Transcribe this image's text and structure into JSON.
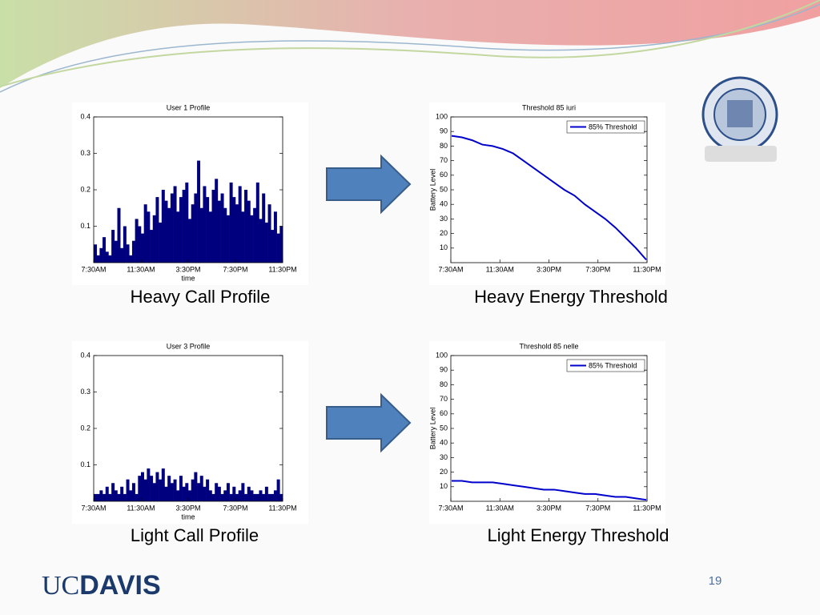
{
  "chart_data": [
    {
      "type": "bar",
      "title": "User 1 Profile",
      "xlabel": "time",
      "color": "#00007f",
      "xticklabels": [
        "7:30AM",
        "11:30AM",
        "3:30PM",
        "7:30PM",
        "11:30PM"
      ],
      "ylim": [
        0,
        0.4
      ],
      "yticks": [
        0.1,
        0.2,
        0.3,
        0.4
      ],
      "values": [
        0.05,
        0.02,
        0.04,
        0.07,
        0.03,
        0.02,
        0.09,
        0.06,
        0.15,
        0.04,
        0.1,
        0.05,
        0.02,
        0.06,
        0.12,
        0.1,
        0.08,
        0.16,
        0.14,
        0.09,
        0.13,
        0.18,
        0.11,
        0.2,
        0.17,
        0.15,
        0.19,
        0.21,
        0.14,
        0.18,
        0.2,
        0.22,
        0.12,
        0.16,
        0.19,
        0.28,
        0.15,
        0.21,
        0.18,
        0.14,
        0.2,
        0.23,
        0.17,
        0.19,
        0.15,
        0.13,
        0.22,
        0.18,
        0.16,
        0.21,
        0.14,
        0.2,
        0.17,
        0.13,
        0.15,
        0.22,
        0.12,
        0.19,
        0.11,
        0.16,
        0.09,
        0.14,
        0.08,
        0.1
      ]
    },
    {
      "type": "line",
      "title": "Threshold 85 iuri",
      "ylabel": "Battery Level",
      "color": "#0000cc",
      "xticklabels": [
        "7:30AM",
        "11:30AM",
        "3:30PM",
        "7:30PM",
        "11:30PM"
      ],
      "ylim": [
        0,
        100
      ],
      "yticks": [
        10,
        20,
        30,
        40,
        50,
        60,
        70,
        80,
        90,
        100
      ],
      "legend": "upper right",
      "series_name": "85% Threshold",
      "values": [
        87,
        86,
        84,
        81,
        80,
        78,
        75,
        70,
        65,
        60,
        55,
        50,
        46,
        40,
        35,
        30,
        24,
        17,
        10,
        2
      ]
    },
    {
      "type": "bar",
      "title": "User 3 Profile",
      "xlabel": "time",
      "color": "#00007f",
      "xticklabels": [
        "7:30AM",
        "11:30AM",
        "3:30PM",
        "7:30PM",
        "11:30PM"
      ],
      "ylim": [
        0,
        0.4
      ],
      "yticks": [
        0.1,
        0.2,
        0.3,
        0.4
      ],
      "values": [
        0.02,
        0.02,
        0.03,
        0.02,
        0.04,
        0.02,
        0.05,
        0.03,
        0.02,
        0.04,
        0.02,
        0.06,
        0.03,
        0.05,
        0.02,
        0.07,
        0.08,
        0.06,
        0.09,
        0.07,
        0.05,
        0.08,
        0.06,
        0.09,
        0.04,
        0.07,
        0.05,
        0.06,
        0.03,
        0.07,
        0.04,
        0.05,
        0.03,
        0.06,
        0.08,
        0.05,
        0.07,
        0.04,
        0.06,
        0.03,
        0.02,
        0.05,
        0.04,
        0.02,
        0.03,
        0.05,
        0.02,
        0.04,
        0.02,
        0.03,
        0.05,
        0.02,
        0.04,
        0.03,
        0.02,
        0.02,
        0.03,
        0.02,
        0.04,
        0.02,
        0.02,
        0.03,
        0.06,
        0.02
      ]
    },
    {
      "type": "line",
      "title": "Threshold 85 nelle",
      "ylabel": "Battery Level",
      "color": "#0000cc",
      "xticklabels": [
        "7:30AM",
        "11:30AM",
        "3:30PM",
        "7:30PM",
        "11:30PM"
      ],
      "ylim": [
        0,
        100
      ],
      "yticks": [
        10,
        20,
        30,
        40,
        50,
        60,
        70,
        80,
        90,
        100
      ],
      "legend": "upper right",
      "series_name": "85% Threshold",
      "values": [
        14,
        14,
        13,
        13,
        13,
        12,
        11,
        10,
        9,
        8,
        8,
        7,
        6,
        5,
        5,
        4,
        3,
        3,
        2,
        1
      ]
    }
  ],
  "captions": [
    "Heavy Call Profile",
    "Heavy Energy Threshold",
    "Light Call Profile",
    "Light Energy Threshold"
  ],
  "page_number": "19",
  "logo": {
    "uc": "UC",
    "davis": "DAVIS"
  }
}
